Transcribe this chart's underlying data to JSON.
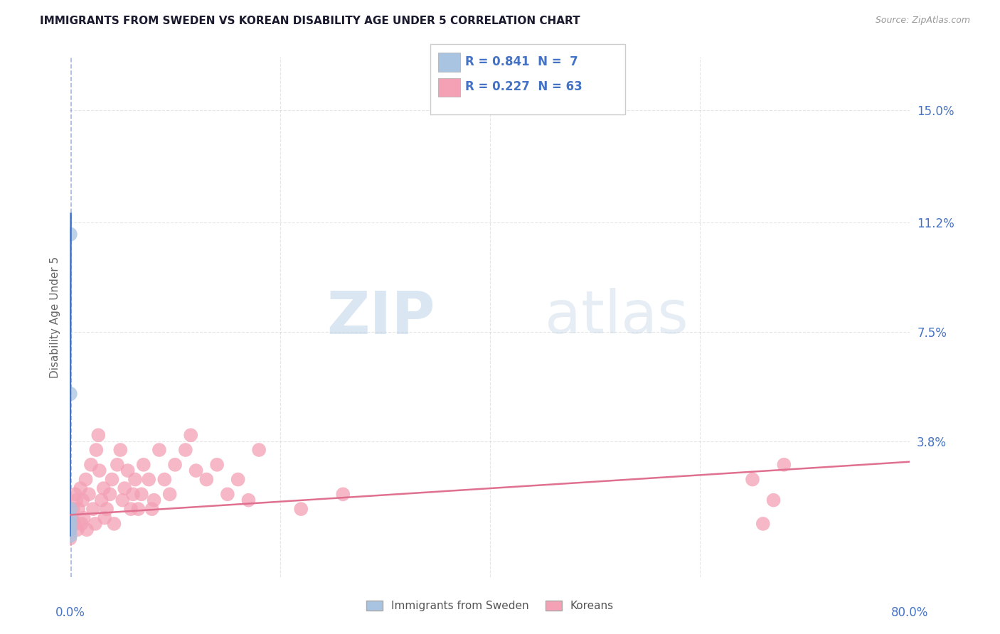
{
  "title": "IMMIGRANTS FROM SWEDEN VS KOREAN DISABILITY AGE UNDER 5 CORRELATION CHART",
  "source": "Source: ZipAtlas.com",
  "ylabel": "Disability Age Under 5",
  "yticks": [
    "15.0%",
    "11.2%",
    "7.5%",
    "3.8%"
  ],
  "ytick_vals": [
    0.15,
    0.112,
    0.075,
    0.038
  ],
  "xlim": [
    0.0,
    0.8
  ],
  "ylim": [
    -0.008,
    0.168
  ],
  "legend_sweden_R": "R = 0.841",
  "legend_sweden_N": "N =  7",
  "legend_korean_R": "R = 0.227",
  "legend_korean_N": "N = 63",
  "sweden_color": "#a8c4e0",
  "korean_color": "#f4a0b5",
  "sweden_line_color": "#4472c4",
  "korean_line_color": "#e07090",
  "title_color": "#1a1a2e",
  "axis_label_color": "#4472c4",
  "background_color": "#ffffff",
  "watermark_zip": "ZIP",
  "watermark_atlas": "atlas",
  "sweden_points_x": [
    0.0,
    0.0,
    0.0,
    0.0,
    0.0,
    0.0,
    0.0
  ],
  "sweden_points_y": [
    0.108,
    0.054,
    0.015,
    0.012,
    0.01,
    0.008,
    0.006
  ],
  "korean_points_x": [
    0.0,
    0.0,
    0.0,
    0.002,
    0.003,
    0.004,
    0.005,
    0.006,
    0.007,
    0.008,
    0.01,
    0.011,
    0.012,
    0.013,
    0.015,
    0.016,
    0.018,
    0.02,
    0.022,
    0.024,
    0.025,
    0.027,
    0.028,
    0.03,
    0.032,
    0.033,
    0.035,
    0.038,
    0.04,
    0.042,
    0.045,
    0.048,
    0.05,
    0.052,
    0.055,
    0.058,
    0.06,
    0.062,
    0.065,
    0.068,
    0.07,
    0.075,
    0.078,
    0.08,
    0.085,
    0.09,
    0.095,
    0.1,
    0.11,
    0.115,
    0.12,
    0.13,
    0.14,
    0.15,
    0.16,
    0.17,
    0.18,
    0.22,
    0.26,
    0.65,
    0.66,
    0.67,
    0.68
  ],
  "korean_points_y": [
    0.01,
    0.008,
    0.005,
    0.012,
    0.015,
    0.01,
    0.02,
    0.018,
    0.008,
    0.015,
    0.022,
    0.01,
    0.018,
    0.012,
    0.025,
    0.008,
    0.02,
    0.03,
    0.015,
    0.01,
    0.035,
    0.04,
    0.028,
    0.018,
    0.022,
    0.012,
    0.015,
    0.02,
    0.025,
    0.01,
    0.03,
    0.035,
    0.018,
    0.022,
    0.028,
    0.015,
    0.02,
    0.025,
    0.015,
    0.02,
    0.03,
    0.025,
    0.015,
    0.018,
    0.035,
    0.025,
    0.02,
    0.03,
    0.035,
    0.04,
    0.028,
    0.025,
    0.03,
    0.02,
    0.025,
    0.018,
    0.035,
    0.015,
    0.02,
    0.025,
    0.01,
    0.018,
    0.03
  ],
  "sweden_trendline_x": [
    0.0,
    0.0008
  ],
  "sweden_trendline_y": [
    0.006,
    0.115
  ],
  "korean_trendline_x": [
    0.0,
    0.8
  ],
  "korean_trendline_y": [
    0.013,
    0.031
  ],
  "grid_color": "#cccccc",
  "grid_alpha": 0.5,
  "vline_x": [
    0.2,
    0.4,
    0.6,
    0.8
  ],
  "hline_y": [
    0.15,
    0.112,
    0.075,
    0.038
  ]
}
